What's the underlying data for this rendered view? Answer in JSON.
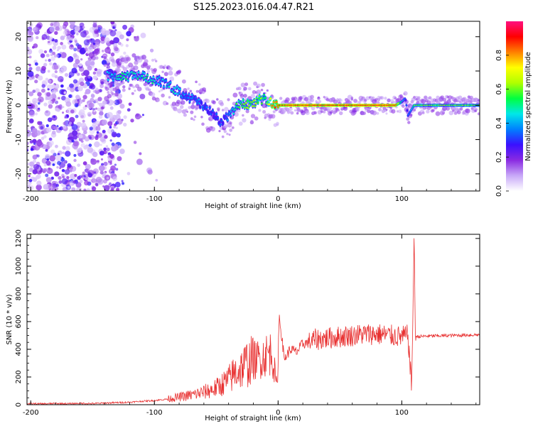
{
  "title": "S125.2023.016.04.47.R21",
  "chart_data": [
    {
      "type": "heatmap",
      "xlabel": "Height of straight line (km)",
      "ylabel": "Frequency (Hz)",
      "xlim": [
        -203,
        163
      ],
      "ylim": [
        -25,
        24.5
      ],
      "xticks": [
        -200,
        -100,
        0,
        100
      ],
      "yticks": [
        20,
        10,
        0,
        -10,
        -20
      ],
      "grid": false,
      "colorbar": {
        "label": "Normalized spectral amplitude",
        "range": [
          0,
          1
        ],
        "ticks": [
          0.0,
          0.2,
          0.4,
          0.6,
          0.8
        ],
        "colors": [
          "#ffffff",
          "#c8a8f8",
          "#8a2be2",
          "#3a10ff",
          "#0080ff",
          "#00e8e8",
          "#00ff40",
          "#b0ff00",
          "#ffff00",
          "#ff8000",
          "#ff0000",
          "#ff1080"
        ]
      },
      "ridge": {
        "x": [
          -135,
          -125,
          -115,
          -105,
          -95,
          -85,
          -75,
          -65,
          -55,
          -45,
          -40,
          -35,
          -30,
          -25,
          -20,
          -15,
          -10,
          -5,
          0,
          20,
          40,
          60,
          80,
          95,
          100,
          103,
          105,
          110,
          130,
          160
        ],
        "frequency": [
          8.5,
          8,
          9,
          8,
          7,
          5,
          3,
          1,
          -2,
          -5,
          -3,
          -1,
          0.5,
          0.5,
          0,
          1.5,
          2,
          0.5,
          0,
          0,
          0,
          0,
          0,
          0,
          1,
          2,
          -3,
          0,
          0,
          0
        ],
        "amplitude": [
          0.4,
          0.5,
          0.45,
          0.5,
          0.4,
          0.45,
          0.35,
          0.35,
          0.3,
          0.3,
          0.35,
          0.5,
          0.55,
          0.6,
          0.6,
          0.6,
          0.55,
          0.8,
          0.85,
          0.9,
          0.9,
          0.9,
          0.9,
          0.9,
          0.5,
          0.3,
          0.3,
          0.6,
          0.6,
          0.6
        ]
      }
    },
    {
      "type": "line",
      "xlabel": "Height of straight line (km)",
      "ylabel": "SNR (10 * v/v)",
      "xlim": [
        -203,
        163
      ],
      "ylim": [
        0,
        1230
      ],
      "xticks": [
        -200,
        -100,
        0,
        100
      ],
      "yticks": [
        0,
        200,
        400,
        600,
        800,
        1000,
        1200
      ],
      "color": "#e83030",
      "series": [
        {
          "x": [
            -203,
            -190,
            -180,
            -170,
            -160,
            -150,
            -140,
            -130,
            -120,
            -110,
            -100,
            -90,
            -80,
            -70,
            -60,
            -50,
            -40,
            -35,
            -30,
            -25,
            -20,
            -15,
            -10,
            -5,
            -1,
            1,
            5,
            10,
            15,
            20,
            25,
            30,
            40,
            50,
            60,
            70,
            80,
            90,
            100,
            105,
            108,
            110,
            111,
            120,
            140,
            163
          ],
          "values": [
            8,
            6,
            9,
            7,
            10,
            8,
            12,
            15,
            18,
            25,
            30,
            40,
            55,
            70,
            90,
            120,
            180,
            230,
            260,
            300,
            320,
            330,
            360,
            380,
            120,
            640,
            330,
            400,
            380,
            440,
            450,
            470,
            480,
            490,
            500,
            510,
            510,
            500,
            490,
            500,
            120,
            1230,
            490,
            495,
            500,
            505
          ]
        }
      ]
    }
  ]
}
